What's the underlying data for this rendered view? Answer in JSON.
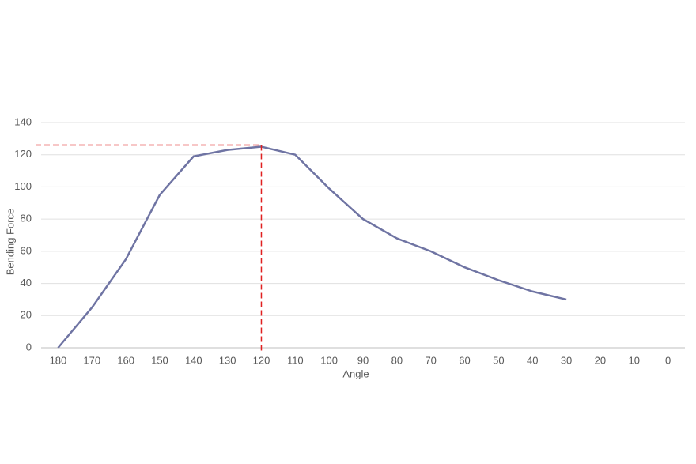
{
  "chart_data": {
    "type": "line",
    "x": [
      180,
      170,
      160,
      150,
      140,
      130,
      120,
      110,
      100,
      90,
      80,
      70,
      60,
      50,
      40,
      30,
      20,
      10,
      0
    ],
    "values": [
      0,
      25,
      55,
      95,
      119,
      123,
      125,
      120,
      99,
      80,
      68,
      60,
      50,
      42,
      35,
      30,
      null,
      null,
      null
    ],
    "color": "#6f74a3",
    "xlim": [
      185,
      -5
    ],
    "xticks": [
      180,
      170,
      160,
      150,
      140,
      130,
      120,
      110,
      100,
      90,
      80,
      70,
      60,
      50,
      40,
      30,
      20,
      10,
      0
    ],
    "ylim": [
      0,
      140
    ],
    "yticks": [
      0,
      20,
      40,
      60,
      80,
      100,
      120,
      140
    ],
    "x_label": "Angle",
    "y_label": "Bending Force",
    "grid": true,
    "reference_point": {
      "x": 120,
      "y": 126,
      "color": "#e02020"
    }
  }
}
